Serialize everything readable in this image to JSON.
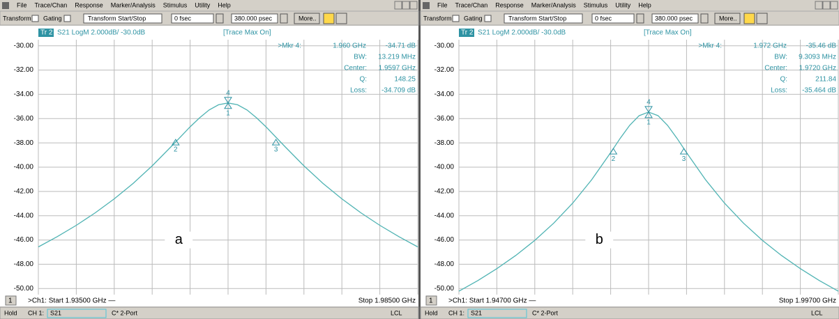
{
  "panels": [
    {
      "menu": [
        "File",
        "Trace/Chan",
        "Response",
        "Marker/Analysis",
        "Stimulus",
        "Utility",
        "Help"
      ],
      "toolbar": {
        "transform": "Transform",
        "gating": "Gating",
        "mode": "Transform Start/Stop",
        "start": "0 fsec",
        "stop": "380.000 psec",
        "more": "More.."
      },
      "status": {
        "hold": "Hold",
        "channel": "CH 1:",
        "param": "S21",
        "cal": "C* 2-Port",
        "lcl": "LCL"
      }
    },
    {
      "menu": [
        "File",
        "Trace/Chan",
        "Response",
        "Marker/Analysis",
        "Stimulus",
        "Utility",
        "Help"
      ],
      "toolbar": {
        "transform": "Transform",
        "gating": "Gating",
        "mode": "Transform Start/Stop",
        "start": "0 fsec",
        "stop": "380.000 psec",
        "more": "More.."
      },
      "status": {
        "hold": "Hold",
        "channel": "CH 1:",
        "param": "S21",
        "cal": "C* 2-Port",
        "lcl": "LCL"
      }
    }
  ],
  "chart_data": [
    {
      "type": "line",
      "trace_tag": "Tr 2",
      "title": "S21 LogM 2.000dB/ -30.0dB",
      "subtitle": "[Trace Max On]",
      "channel_box": "1",
      "start_label": ">Ch1: Start 1.93500 GHz —",
      "stop_label": "Stop 1.98500 GHz",
      "annotation": "a",
      "xlim": [
        1.935,
        1.985
      ],
      "ylim": [
        -50.5,
        -29.5
      ],
      "grid": true,
      "color": "#4fb3b3",
      "yticks": [
        {
          "value": -30,
          "label": "-30.00"
        },
        {
          "value": -32,
          "label": "-32.00"
        },
        {
          "value": -34,
          "label": "-34.00"
        },
        {
          "value": -36,
          "label": "-36.00"
        },
        {
          "value": -38,
          "label": "-38.00"
        },
        {
          "value": -40,
          "label": "-40.00"
        },
        {
          "value": -42,
          "label": "-42.00"
        },
        {
          "value": -44,
          "label": "-44.00"
        },
        {
          "value": -46,
          "label": "-46.00"
        },
        {
          "value": -48,
          "label": "-48.00"
        },
        {
          "value": -50,
          "label": "-50.00"
        }
      ],
      "x": [
        1.935,
        1.9375,
        1.94,
        1.9425,
        1.945,
        1.9475,
        1.95,
        1.9525,
        1.955,
        1.95625,
        1.9575,
        1.95875,
        1.96,
        1.96125,
        1.9625,
        1.96375,
        1.965,
        1.9675,
        1.97,
        1.9725,
        1.975,
        1.9775,
        1.98,
        1.9825,
        1.985
      ],
      "values": [
        -46.57,
        -45.72,
        -44.79,
        -43.76,
        -42.61,
        -41.33,
        -39.89,
        -38.31,
        -36.68,
        -35.93,
        -35.29,
        -34.86,
        -34.71,
        -34.86,
        -35.29,
        -35.93,
        -36.68,
        -38.31,
        -39.89,
        -41.33,
        -42.61,
        -43.76,
        -44.79,
        -45.72,
        -46.57
      ],
      "markers": [
        {
          "label": "1",
          "x": 1.96,
          "value": -34.71,
          "side": "below"
        },
        {
          "label": "2",
          "x": 1.95309,
          "value": -37.71,
          "side": "below"
        },
        {
          "label": "3",
          "x": 1.96631,
          "value": -37.71,
          "side": "below"
        },
        {
          "label": "4",
          "x": 1.96,
          "value": -34.71,
          "side": "above"
        }
      ],
      "readout": [
        [
          ">Mkr 4:",
          "1.960 GHz",
          "-34.71 dB"
        ],
        [
          "BW:",
          "13.219 MHz"
        ],
        [
          "Center:",
          "1.9597 GHz"
        ],
        [
          "Q:",
          "148.25"
        ],
        [
          "Loss:",
          "-34.709 dB"
        ]
      ]
    },
    {
      "type": "line",
      "trace_tag": "Tr 2",
      "title": "S21 LogM 2.000dB/ -30.0dB",
      "subtitle": "[Trace Max On]",
      "channel_box": "1",
      "start_label": ">Ch1: Start 1.94700 GHz —",
      "stop_label": "Stop 1.99700 GHz",
      "annotation": "b",
      "xlim": [
        1.947,
        1.997
      ],
      "ylim": [
        -50.5,
        -29.5
      ],
      "grid": true,
      "color": "#4fb3b3",
      "yticks": [
        {
          "value": -30,
          "label": "-30.00"
        },
        {
          "value": -32,
          "label": "-32.00"
        },
        {
          "value": -34,
          "label": "-34.00"
        },
        {
          "value": -36,
          "label": "-36.00"
        },
        {
          "value": -38,
          "label": "-38.00"
        },
        {
          "value": -40,
          "label": "-40.00"
        },
        {
          "value": -42,
          "label": "-42.00"
        },
        {
          "value": -44,
          "label": "-44.00"
        },
        {
          "value": -46,
          "label": "-46.00"
        },
        {
          "value": -48,
          "label": "-48.00"
        },
        {
          "value": -50,
          "label": "-50.00"
        }
      ],
      "x": [
        1.947,
        1.9495,
        1.952,
        1.9545,
        1.957,
        1.9595,
        1.962,
        1.9645,
        1.967,
        1.96825,
        1.9695,
        1.97075,
        1.972,
        1.97325,
        1.9745,
        1.97575,
        1.977,
        1.9795,
        1.982,
        1.9845,
        1.987,
        1.9895,
        1.992,
        1.9945,
        1.997
      ],
      "values": [
        -50.22,
        -49.34,
        -48.36,
        -47.27,
        -46.03,
        -44.61,
        -42.96,
        -41.03,
        -38.8,
        -37.63,
        -36.56,
        -35.76,
        -35.46,
        -35.76,
        -36.56,
        -37.63,
        -38.8,
        -41.03,
        -42.96,
        -44.61,
        -46.03,
        -47.27,
        -48.36,
        -49.34,
        -50.22
      ],
      "markers": [
        {
          "label": "1",
          "x": 1.972,
          "value": -35.46,
          "side": "below"
        },
        {
          "label": "2",
          "x": 1.96735,
          "value": -38.46,
          "side": "below"
        },
        {
          "label": "3",
          "x": 1.97665,
          "value": -38.46,
          "side": "below"
        },
        {
          "label": "4",
          "x": 1.972,
          "value": -35.46,
          "side": "above"
        }
      ],
      "readout": [
        [
          ">Mkr 4:",
          "1.972 GHz",
          "-35.46 dB"
        ],
        [
          "BW:",
          "9.3093 MHz"
        ],
        [
          "Center:",
          "1.9720 GHz"
        ],
        [
          "Q:",
          "211.84"
        ],
        [
          "Loss:",
          "-35.464 dB"
        ]
      ]
    }
  ]
}
